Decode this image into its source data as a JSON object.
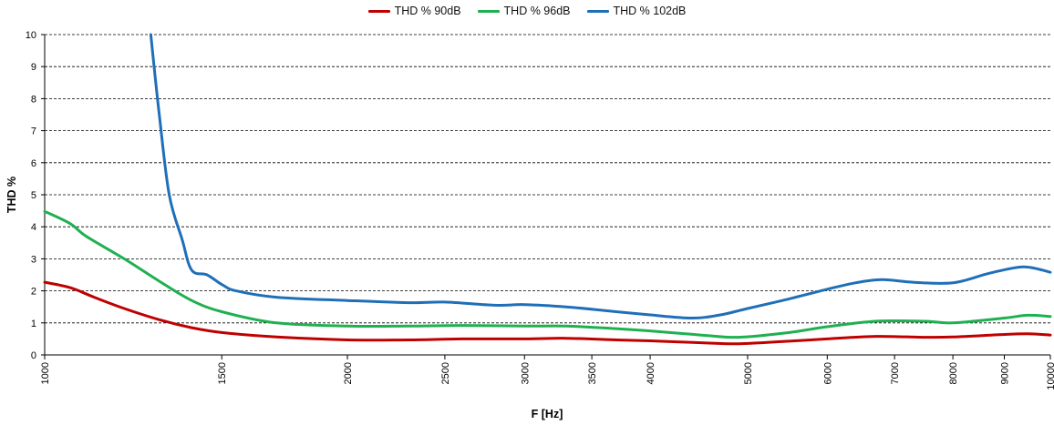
{
  "chart_data": {
    "type": "line",
    "xlabel": "F [Hz]",
    "ylabel": "THD %",
    "x_scale": "log",
    "xlim": [
      1000,
      10000
    ],
    "ylim": [
      0,
      10
    ],
    "x_ticks": [
      1000,
      1500,
      2000,
      2500,
      3000,
      3500,
      4000,
      5000,
      6000,
      7000,
      8000,
      9000,
      10000
    ],
    "x_tick_labels": [
      "1000",
      "1500",
      "2000",
      "2500",
      "3000",
      "3500",
      "4000",
      "5000",
      "6000",
      "7000",
      "8000",
      "9000",
      "10000"
    ],
    "y_ticks": [
      0,
      1,
      2,
      3,
      4,
      5,
      6,
      7,
      8,
      9,
      10
    ],
    "y_tick_labels": [
      "0",
      "1",
      "2",
      "3",
      "4",
      "5",
      "6",
      "7",
      "8",
      "9",
      "10"
    ],
    "grid": "horizontal dashed",
    "legend_position": "top-center",
    "series": [
      {
        "name": "THD % 90dB",
        "color": "#c00000",
        "x": [
          1000,
          1060,
          1120,
          1200,
          1300,
          1400,
          1500,
          1700,
          2000,
          2300,
          2600,
          3000,
          3300,
          3700,
          4000,
          4500,
          4900,
          5500,
          6000,
          6700,
          7500,
          8000,
          9000,
          9500,
          10000
        ],
        "y": [
          2.27,
          2.1,
          1.8,
          1.45,
          1.1,
          0.85,
          0.7,
          0.56,
          0.47,
          0.47,
          0.5,
          0.5,
          0.52,
          0.47,
          0.44,
          0.38,
          0.35,
          0.43,
          0.5,
          0.58,
          0.55,
          0.56,
          0.64,
          0.66,
          0.62
        ]
      },
      {
        "name": "THD % 96dB",
        "color": "#1fb050",
        "x": [
          1000,
          1060,
          1100,
          1200,
          1300,
          1400,
          1500,
          1700,
          2000,
          2300,
          2600,
          3000,
          3300,
          3700,
          4000,
          4500,
          4900,
          5500,
          6000,
          6700,
          7500,
          8000,
          9000,
          9500,
          10000
        ],
        "y": [
          4.48,
          4.1,
          3.7,
          3.0,
          2.3,
          1.7,
          1.35,
          1.0,
          0.9,
          0.9,
          0.92,
          0.9,
          0.9,
          0.82,
          0.75,
          0.62,
          0.55,
          0.7,
          0.88,
          1.05,
          1.05,
          1.0,
          1.15,
          1.24,
          1.2
        ]
      },
      {
        "name": "THD % 102dB",
        "color": "#1f6fb8",
        "x": [
          1275,
          1300,
          1330,
          1370,
          1400,
          1450,
          1500,
          1550,
          1700,
          2000,
          2300,
          2500,
          2800,
          3000,
          3300,
          3700,
          4000,
          4400,
          4700,
          5000,
          5500,
          6000,
          6400,
          6800,
          7300,
          8000,
          8700,
          9400,
          10000
        ],
        "y": [
          10.0,
          7.5,
          5.0,
          3.6,
          2.65,
          2.5,
          2.2,
          2.0,
          1.8,
          1.7,
          1.63,
          1.65,
          1.55,
          1.57,
          1.5,
          1.35,
          1.25,
          1.15,
          1.25,
          1.45,
          1.75,
          2.05,
          2.25,
          2.35,
          2.27,
          2.25,
          2.55,
          2.75,
          2.58
        ]
      }
    ]
  }
}
